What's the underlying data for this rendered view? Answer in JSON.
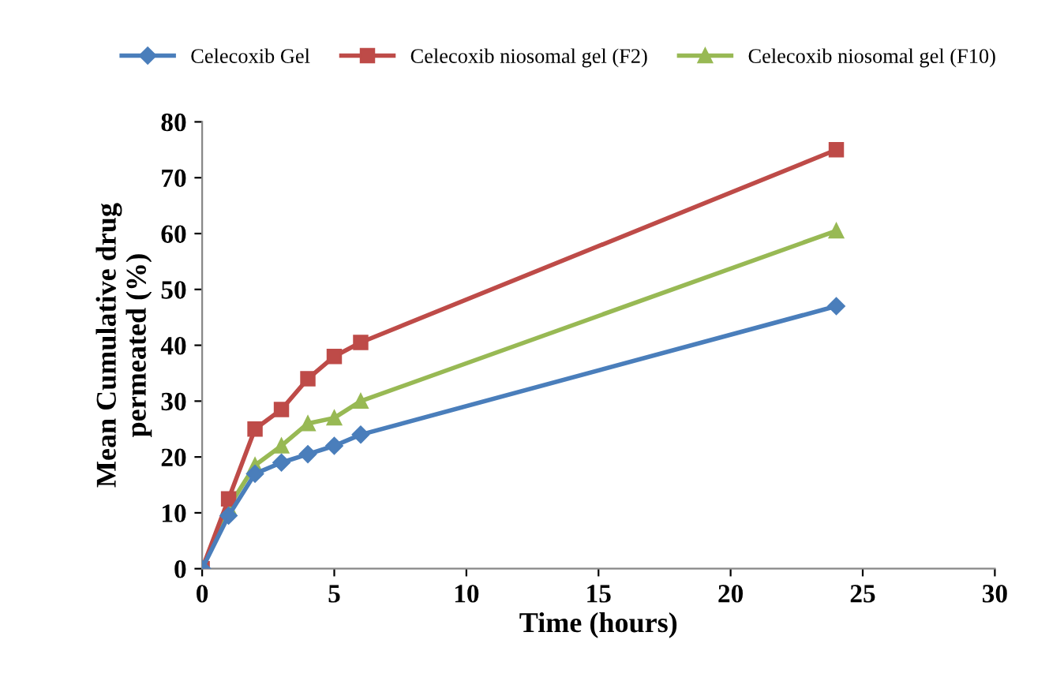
{
  "chart_data": {
    "type": "line",
    "xlabel": "Time (hours)",
    "ylabel": "Mean Cumulative drug\npermeated (%)",
    "x": [
      0,
      1,
      2,
      3,
      4,
      5,
      6,
      24
    ],
    "series": [
      {
        "name": "Celecoxib Gel",
        "color": "#4a7ebb",
        "marker": "diamond",
        "values": [
          0,
          9.5,
          17,
          19,
          20.5,
          22,
          24,
          47
        ]
      },
      {
        "name": "Celecoxib niosomal gel (F2)",
        "color": "#be4b48",
        "marker": "square",
        "values": [
          0,
          12.5,
          25,
          28.5,
          34,
          38,
          40.5,
          75
        ]
      },
      {
        "name": "Celecoxib niosomal gel (F10)",
        "color": "#98b954",
        "marker": "triangle",
        "values": [
          0,
          11,
          18.5,
          22,
          26,
          27,
          30,
          60.5
        ]
      }
    ],
    "xlim": [
      0,
      30
    ],
    "xticks": [
      0,
      5,
      10,
      15,
      20,
      25,
      30
    ],
    "ylim": [
      0,
      80
    ],
    "yticks": [
      0,
      10,
      20,
      30,
      40,
      50,
      60,
      70,
      80
    ],
    "grid": false,
    "legend": "top",
    "line_style": "solid"
  }
}
